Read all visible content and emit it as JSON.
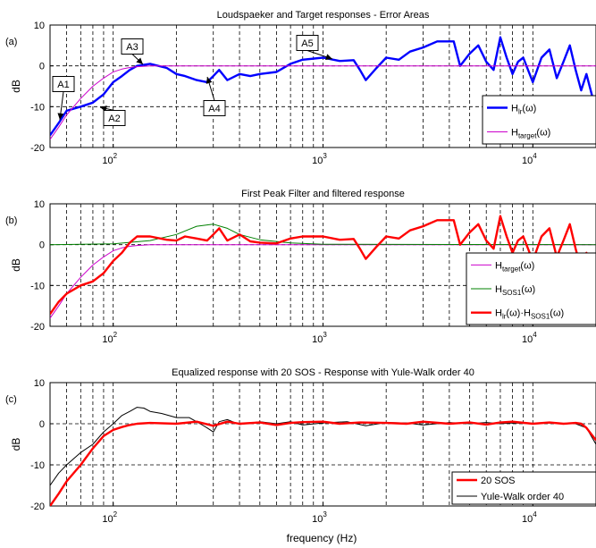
{
  "figure": {
    "xlabel": "frequency (Hz)"
  },
  "chart_data": [
    {
      "type": "line",
      "panel_label": "(a)",
      "title": "Loudspaeker and Target responses - Error Areas",
      "ylabel": "dB",
      "x_scale": "log",
      "xlim": [
        50,
        20000
      ],
      "ylim": [
        -20,
        10
      ],
      "y_ticks": [
        -20,
        -10,
        0,
        10
      ],
      "x_ticks": [
        100,
        1000,
        10000
      ],
      "x_tick_labels": [
        {
          "base": "10",
          "exp": "2"
        },
        {
          "base": "10",
          "exp": "3"
        },
        {
          "base": "10",
          "exp": "4"
        }
      ],
      "grid": true,
      "legend_position": "lower-right",
      "legend": [
        {
          "base": "H",
          "sub": "lr",
          "tail": "(ω)",
          "color": "#0000ff"
        },
        {
          "base": "H",
          "sub": "target",
          "tail": "(ω)",
          "color": "#cc00cc"
        }
      ],
      "series": [
        {
          "color": "#0000ff",
          "width": 2.4,
          "x": [
            50,
            55,
            60,
            70,
            80,
            90,
            100,
            110,
            120,
            130,
            150,
            180,
            200,
            220,
            250,
            280,
            300,
            320,
            350,
            400,
            450,
            500,
            600,
            700,
            800,
            1000,
            1200,
            1400,
            1500,
            1600,
            1800,
            2000,
            2300,
            2600,
            3000,
            3500,
            3900,
            4200,
            4500,
            5000,
            5500,
            6000,
            6500,
            7000,
            7500,
            8000,
            8500,
            9000,
            10000,
            11000,
            12000,
            13000,
            14000,
            15000,
            16000,
            17000,
            18000,
            20000
          ],
          "y": [
            -17,
            -14,
            -11,
            -10,
            -9,
            -7,
            -4,
            -2.5,
            -1,
            0,
            0.5,
            -0.5,
            -2,
            -2.5,
            -3.5,
            -4,
            -2.5,
            -1,
            -3.5,
            -2,
            -2.5,
            -2,
            -1.5,
            0.5,
            1.5,
            2,
            1.2,
            1.4,
            -1,
            -3.5,
            -0.5,
            2,
            1.5,
            3.5,
            4.5,
            6,
            6,
            6,
            0,
            3,
            5,
            1,
            -1,
            7,
            2,
            -2,
            1,
            2,
            -4,
            2,
            4,
            -3,
            1,
            5,
            -1,
            -6,
            -2,
            -11
          ]
        },
        {
          "color": "#cc00cc",
          "width": 1,
          "x": [
            50,
            55,
            60,
            70,
            80,
            90,
            100,
            110,
            120,
            130,
            150,
            200,
            300,
            1000,
            20000
          ],
          "y": [
            -18,
            -15,
            -12,
            -8,
            -5,
            -3,
            -1.5,
            -0.8,
            -0.4,
            -0.2,
            0,
            0,
            0,
            0,
            0
          ]
        }
      ],
      "annotations": [
        "A1",
        "A2",
        "A3",
        "A4",
        "A5"
      ]
    },
    {
      "type": "line",
      "panel_label": "(b)",
      "title": "First Peak Filter and filtered response",
      "ylabel": "dB",
      "x_scale": "log",
      "xlim": [
        50,
        20000
      ],
      "ylim": [
        -20,
        10
      ],
      "y_ticks": [
        -20,
        -10,
        0,
        10
      ],
      "x_ticks": [
        100,
        1000,
        10000
      ],
      "x_tick_labels": [
        {
          "base": "10",
          "exp": "2"
        },
        {
          "base": "10",
          "exp": "3"
        },
        {
          "base": "10",
          "exp": "4"
        }
      ],
      "grid": true,
      "legend_position": "lower-right",
      "legend": [
        {
          "base": "H",
          "sub": "target",
          "tail": "(ω)",
          "color": "#cc00cc"
        },
        {
          "base": "H",
          "sub": "SOS1",
          "tail": "(ω)",
          "color": "#008000"
        },
        {
          "base": "H",
          "sub": "lr",
          "mid": "(ω)·H",
          "sub2": "SOS1",
          "tail": "(ω)",
          "color": "#ff0000"
        }
      ],
      "series": [
        {
          "color": "#cc00cc",
          "width": 1,
          "x": [
            50,
            55,
            60,
            70,
            80,
            90,
            100,
            110,
            120,
            130,
            150,
            200,
            300,
            1000,
            20000
          ],
          "y": [
            -18,
            -15,
            -12,
            -8,
            -5,
            -3,
            -1.5,
            -0.8,
            -0.4,
            -0.2,
            0,
            0,
            0,
            0,
            0
          ]
        },
        {
          "color": "#008000",
          "width": 1,
          "x": [
            50,
            100,
            150,
            200,
            250,
            300,
            350,
            400,
            500,
            700,
            1000,
            20000
          ],
          "y": [
            0,
            0.2,
            1,
            2.5,
            4.5,
            5,
            4,
            2.5,
            1.2,
            0.4,
            0.1,
            0
          ]
        },
        {
          "color": "#ff0000",
          "width": 2.4,
          "x": [
            50,
            55,
            60,
            70,
            80,
            90,
            100,
            110,
            120,
            130,
            150,
            180,
            200,
            220,
            250,
            280,
            300,
            320,
            350,
            400,
            450,
            500,
            600,
            700,
            800,
            1000,
            1200,
            1400,
            1500,
            1600,
            1800,
            2000,
            2300,
            2600,
            3000,
            3500,
            3900,
            4200,
            4500,
            5000,
            5500,
            6000,
            6500,
            7000,
            7500,
            8000,
            8500,
            9000,
            10000,
            11000,
            12000,
            13000,
            14000,
            15000,
            16000,
            17000,
            18000,
            20000
          ],
          "y": [
            -17,
            -14,
            -12,
            -10,
            -9,
            -7,
            -4,
            -2,
            0.5,
            2,
            2,
            1.2,
            1,
            2,
            1.5,
            1,
            2.5,
            4,
            1,
            2.5,
            0.8,
            0.5,
            0.3,
            1.5,
            2,
            2,
            1.2,
            1.4,
            -1,
            -3.5,
            -0.5,
            2,
            1.5,
            3.5,
            4.5,
            6,
            6,
            6,
            0,
            3,
            5,
            1,
            -1,
            7,
            2,
            -2,
            1,
            2,
            -4,
            2,
            4,
            -3,
            1,
            5,
            -1,
            -6,
            -2,
            -11
          ]
        }
      ]
    },
    {
      "type": "line",
      "panel_label": "(c)",
      "title": "Equalized response with 20 SOS - Response with Yule-Walk order 40",
      "ylabel": "dB",
      "x_scale": "log",
      "xlim": [
        50,
        20000
      ],
      "ylim": [
        -20,
        10
      ],
      "y_ticks": [
        -20,
        -10,
        0,
        10
      ],
      "x_ticks": [
        100,
        1000,
        10000
      ],
      "x_tick_labels": [
        {
          "base": "10",
          "exp": "2"
        },
        {
          "base": "10",
          "exp": "3"
        },
        {
          "base": "10",
          "exp": "4"
        }
      ],
      "grid": true,
      "legend_position": "lower-right",
      "legend": [
        {
          "base": "20 SOS",
          "color": "#ff0000"
        },
        {
          "base": "Yule-Walk order 40",
          "color": "#000000"
        }
      ],
      "series": [
        {
          "color": "#000000",
          "width": 1,
          "x": [
            50,
            55,
            60,
            70,
            80,
            90,
            100,
            110,
            120,
            130,
            140,
            150,
            170,
            200,
            230,
            260,
            280,
            300,
            320,
            350,
            400,
            500,
            600,
            700,
            800,
            1000,
            1300,
            1600,
            2000,
            2500,
            3000,
            4000,
            5000,
            6000,
            7000,
            8000,
            10000,
            12000,
            14000,
            16000,
            18000,
            20000
          ],
          "y": [
            -15,
            -12,
            -10,
            -7,
            -5,
            -2,
            0,
            2,
            3,
            4,
            3.8,
            3,
            2.5,
            1.5,
            1.5,
            0,
            -1,
            -2,
            0.5,
            1,
            -0.2,
            0.5,
            0,
            0.5,
            -0.3,
            0.2,
            0.5,
            -0.5,
            0.3,
            0.2,
            -0.3,
            0.3,
            0,
            0.3,
            0,
            0.2,
            0,
            0.2,
            0,
            0,
            -1,
            -5
          ]
        },
        {
          "color": "#ff0000",
          "width": 2.4,
          "x": [
            50,
            55,
            60,
            70,
            80,
            90,
            100,
            110,
            120,
            130,
            150,
            200,
            250,
            300,
            350,
            400,
            500,
            600,
            700,
            800,
            1000,
            1200,
            1500,
            2000,
            2500,
            3000,
            4000,
            5000,
            6000,
            7000,
            8000,
            10000,
            12000,
            14000,
            16000,
            17000,
            18000,
            20000
          ],
          "y": [
            -20,
            -17,
            -14,
            -10,
            -6,
            -3,
            -1.5,
            -0.8,
            -0.3,
            0,
            0.2,
            0,
            0.5,
            -0.5,
            0.5,
            0,
            0.3,
            -0.3,
            0.2,
            0.4,
            0.5,
            0,
            0.3,
            0.2,
            0,
            0.5,
            0,
            0.3,
            -0.2,
            0.3,
            0.5,
            0,
            0.3,
            0,
            0.2,
            0,
            -1,
            -4
          ]
        }
      ]
    }
  ]
}
